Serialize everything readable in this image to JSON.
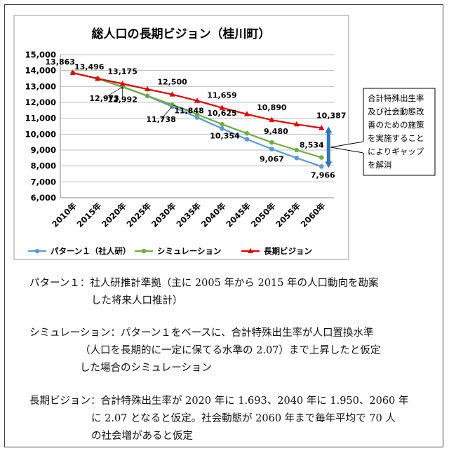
{
  "chart_data": {
    "type": "line",
    "title": "総人口の長期ビジョン（桂川町）",
    "categories": [
      "2010年",
      "2015年",
      "2020年",
      "2025年",
      "2030年",
      "2035年",
      "2040年",
      "2045年",
      "2050年",
      "2055年",
      "2060年"
    ],
    "ylim": [
      6000,
      15000
    ],
    "yticks": [
      "6,000",
      "7,000",
      "8,000",
      "9,000",
      "10,000",
      "11,000",
      "12,000",
      "13,000",
      "14,000",
      "15,000"
    ],
    "grid": true,
    "legend_position": "bottom",
    "series": [
      {
        "name": "パターン１（社人研）",
        "color": "#5b9bd5",
        "marker": "circle",
        "values": [
          13863,
          13496,
          12973,
          12400,
          11738,
          11050,
          10354,
          9680,
          9067,
          8500,
          7966
        ]
      },
      {
        "name": "シミュレーション",
        "color": "#70ad47",
        "marker": "circle",
        "values": [
          13863,
          13496,
          12992,
          12410,
          11848,
          11250,
          10625,
          10050,
          9480,
          9000,
          8534
        ]
      },
      {
        "name": "長期ビジョン",
        "color": "#e00000",
        "marker": "triangle",
        "values": [
          13863,
          13496,
          13175,
          12830,
          12500,
          12100,
          11659,
          11260,
          10890,
          10620,
          10387
        ]
      }
    ],
    "data_labels": [
      {
        "text": "13,863",
        "anchor": "2010年",
        "value": 13863
      },
      {
        "text": "13,496",
        "anchor": "2015年",
        "value": 13496
      },
      {
        "text": "13,175",
        "anchor": "2020年",
        "value": 13175
      },
      {
        "text": "12,973",
        "anchor": "2020年",
        "value": 12973
      },
      {
        "text": "12,992",
        "anchor": "2020年",
        "value": 12992
      },
      {
        "text": "12,500",
        "anchor": "2030年",
        "value": 12500
      },
      {
        "text": "11,738",
        "anchor": "2030年",
        "value": 11738
      },
      {
        "text": "11,848",
        "anchor": "2030年",
        "value": 11848
      },
      {
        "text": "11,659",
        "anchor": "2040年",
        "value": 11659
      },
      {
        "text": "10,625",
        "anchor": "2040年",
        "value": 10625
      },
      {
        "text": "10,354",
        "anchor": "2040年",
        "value": 10354
      },
      {
        "text": "10,890",
        "anchor": "2050年",
        "value": 10890
      },
      {
        "text": "9,480",
        "anchor": "2050年",
        "value": 9480
      },
      {
        "text": "9,067",
        "anchor": "2050年",
        "value": 9067
      },
      {
        "text": "10,387",
        "anchor": "2060年",
        "value": 10387
      },
      {
        "text": "8,534",
        "anchor": "2060年",
        "value": 8534
      },
      {
        "text": "7,966",
        "anchor": "2060年",
        "value": 7966
      }
    ],
    "annotation": {
      "lines": [
        "合計特殊出生率",
        "及び社会動態改",
        "善のための施策",
        "を実施すること",
        "によりギャップ",
        "を解消"
      ],
      "gap_from": 7966,
      "gap_to": 10387
    }
  },
  "notes": [
    {
      "head": "パターン１：",
      "lines": [
        "社人研推計準拠（主に 2005 年から 2015 年の人口動向を勘案",
        "した将来人口推計）"
      ]
    },
    {
      "head": "シミュレーション：",
      "lines": [
        "パターン１をベースに、合計特殊出生率が人口置換水準",
        "（人口を長期的に一定に保てる水準の 2.07）まで上昇したと仮定",
        "した場合のシミュレーション"
      ]
    },
    {
      "head": "長期ビジョン：",
      "lines": [
        "合計特殊出生率が 2020 年に 1.693、2040 年に 1.950、2060 年",
        "に 2.07 となると仮定。社会動態が 2060 年まで毎年平均で 70 人",
        "の社会増があると仮定"
      ]
    }
  ]
}
